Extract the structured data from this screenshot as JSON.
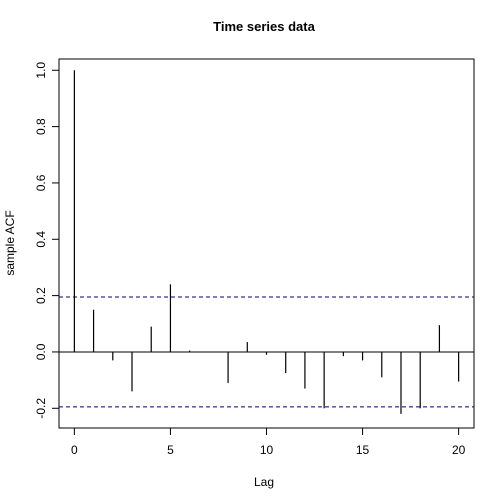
{
  "chart_data": {
    "type": "bar",
    "title": "Time series data",
    "xlabel": "Lag",
    "ylabel": "sample ACF",
    "xlim": [
      -0.8,
      20.8
    ],
    "ylim": [
      -0.27,
      1.04
    ],
    "x_ticks": [
      0,
      5,
      10,
      15,
      20
    ],
    "y_ticks": [
      -0.2,
      0.0,
      0.2,
      0.4,
      0.6,
      0.8,
      1.0
    ],
    "y_tick_labels": [
      "-0.2",
      "0.0",
      "0.2",
      "0.4",
      "0.6",
      "0.8",
      "1.0"
    ],
    "lags": [
      0,
      1,
      2,
      3,
      4,
      5,
      6,
      7,
      8,
      9,
      10,
      11,
      12,
      13,
      14,
      15,
      16,
      17,
      18,
      19,
      20
    ],
    "acf": [
      1.0,
      0.15,
      -0.03,
      -0.14,
      0.09,
      0.24,
      0.005,
      0.0,
      -0.11,
      0.035,
      -0.01,
      -0.075,
      -0.13,
      -0.2,
      -0.015,
      -0.03,
      -0.09,
      -0.22,
      -0.2,
      0.095,
      -0.105
    ],
    "confidence_bounds": [
      0.195,
      -0.195
    ],
    "bound_color": "#000080",
    "grid": false,
    "legend": "none"
  }
}
